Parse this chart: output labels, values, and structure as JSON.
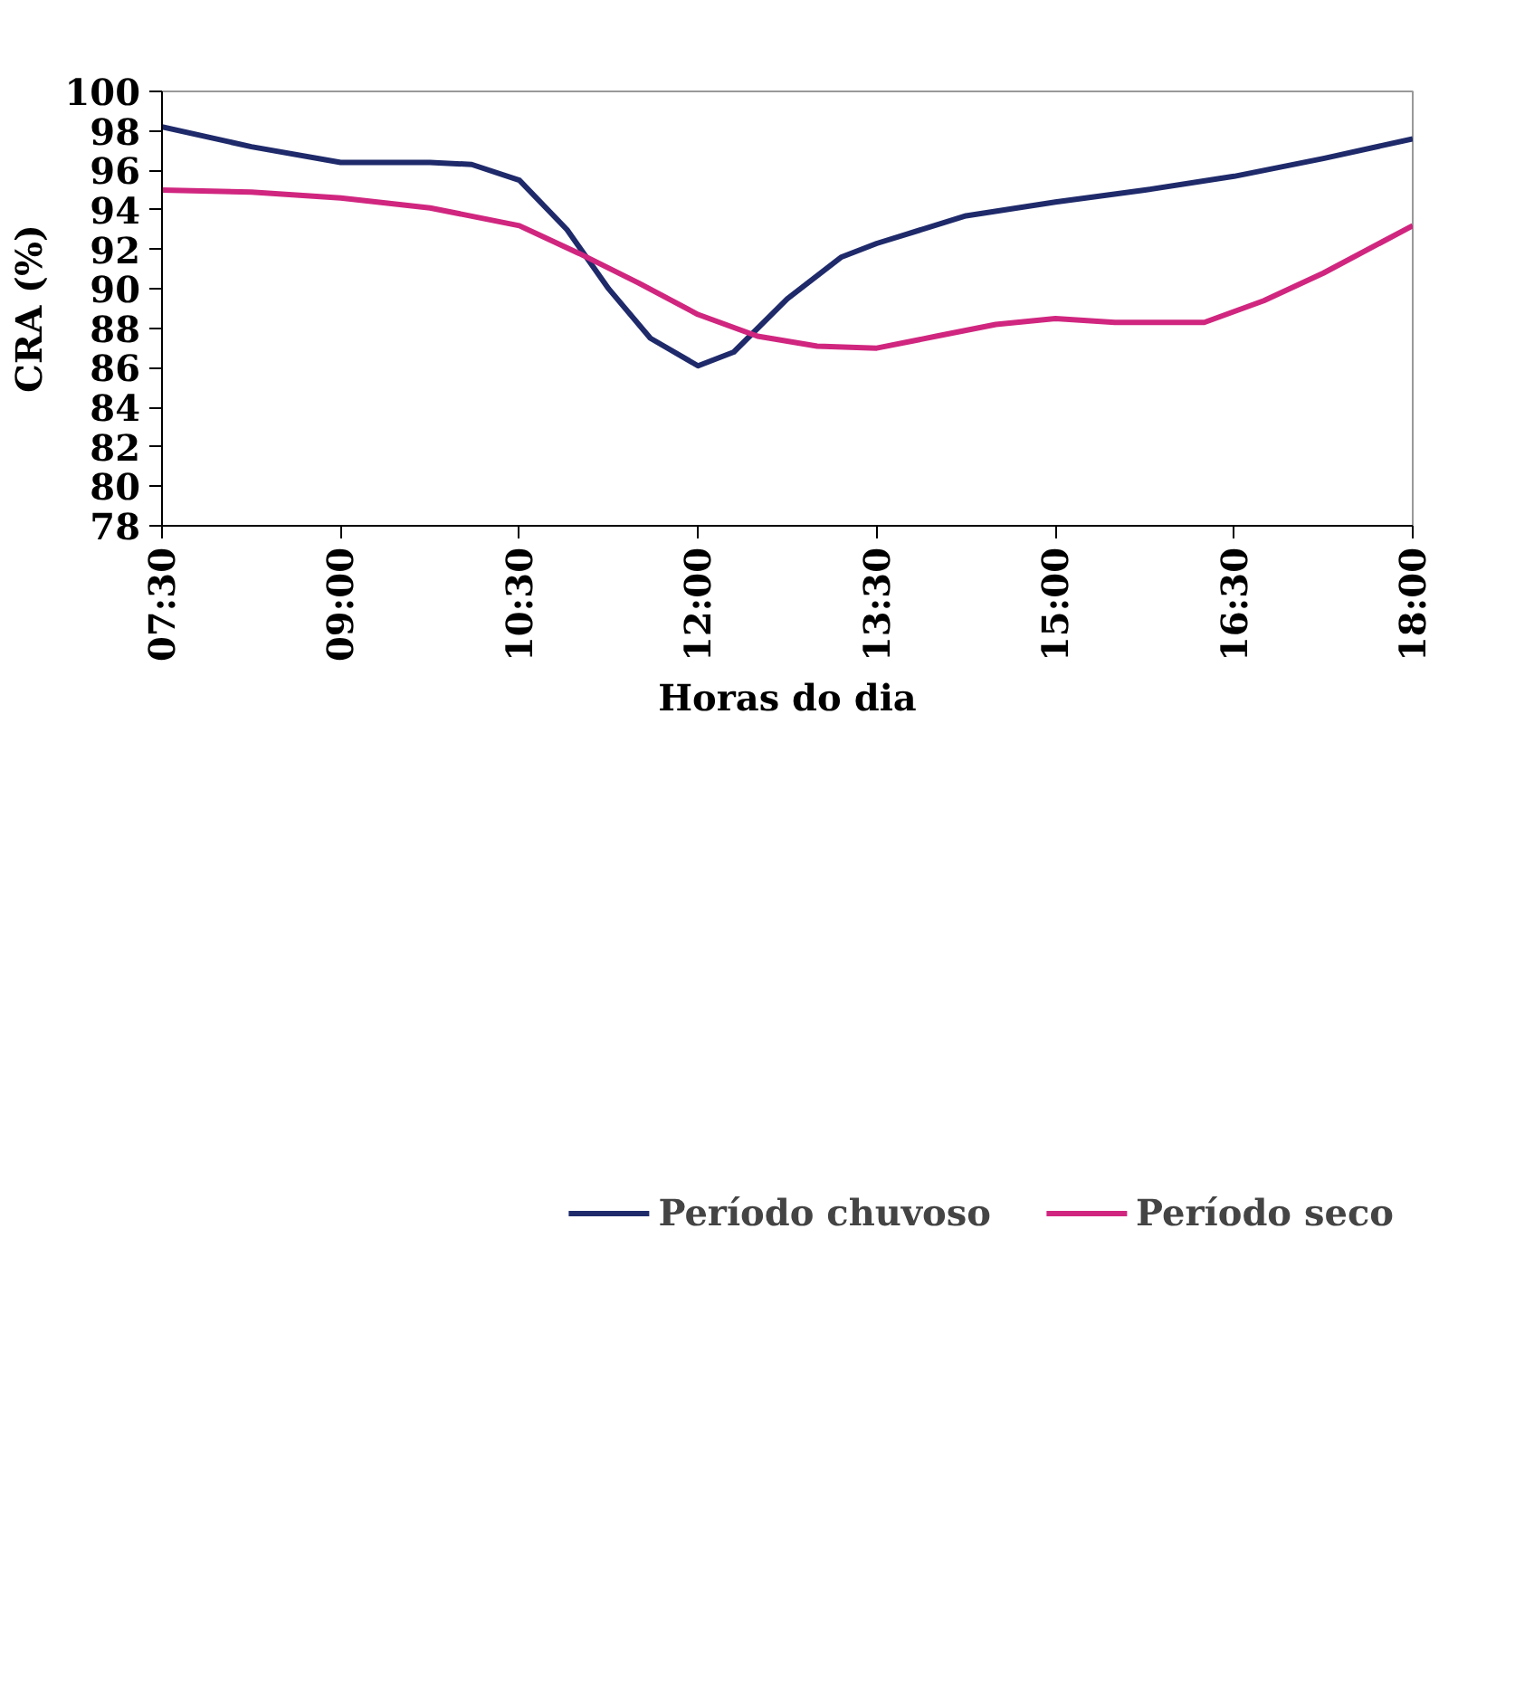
{
  "chart_data": {
    "type": "line",
    "xlabel": "Horas do dia",
    "ylabel": "CRA (%)",
    "xlim": [
      7.5,
      18
    ],
    "ylim": [
      78,
      100
    ],
    "xticks": [
      {
        "value": 7.5,
        "label": "07:30"
      },
      {
        "value": 9,
        "label": "09:00"
      },
      {
        "value": 10.5,
        "label": "10:30"
      },
      {
        "value": 12,
        "label": "12:00"
      },
      {
        "value": 13.5,
        "label": "13:30"
      },
      {
        "value": 15,
        "label": "15:00"
      },
      {
        "value": 16.5,
        "label": "16:30"
      },
      {
        "value": 18,
        "label": "18:00"
      }
    ],
    "yticks": [
      78,
      80,
      82,
      84,
      86,
      88,
      90,
      92,
      94,
      96,
      98,
      100
    ],
    "grid": false,
    "legend": "bottom",
    "marker": "none",
    "line_style": "solid",
    "series": [
      {
        "name": "Período chuvoso",
        "color": "#1f2a6b",
        "x": [
          7.5,
          8.25,
          9,
          9.75,
          10.1,
          10.5,
          10.9,
          11.25,
          11.6,
          12,
          12.3,
          12.75,
          13.2,
          13.5,
          14.25,
          15,
          15.75,
          16.5,
          17.25,
          18
        ],
        "values": [
          98.2,
          97.2,
          96.4,
          96.4,
          96.3,
          95.5,
          93,
          90,
          87.5,
          86.1,
          86.8,
          89.5,
          91.6,
          92.3,
          93.7,
          94.4,
          95,
          95.7,
          96.6,
          97.6
        ]
      },
      {
        "name": "Período seco",
        "color": "#d0267f",
        "x": [
          7.5,
          8.25,
          9,
          9.75,
          10.5,
          11,
          11.5,
          12,
          12.5,
          13,
          13.5,
          14,
          14.5,
          15,
          15.5,
          16.25,
          16.75,
          17.25,
          18
        ],
        "values": [
          95,
          94.9,
          94.6,
          94.1,
          93.2,
          91.8,
          90.3,
          88.7,
          87.6,
          87.1,
          87,
          87.6,
          88.2,
          88.5,
          88.3,
          88.3,
          89.4,
          90.8,
          93.2
        ]
      }
    ]
  }
}
